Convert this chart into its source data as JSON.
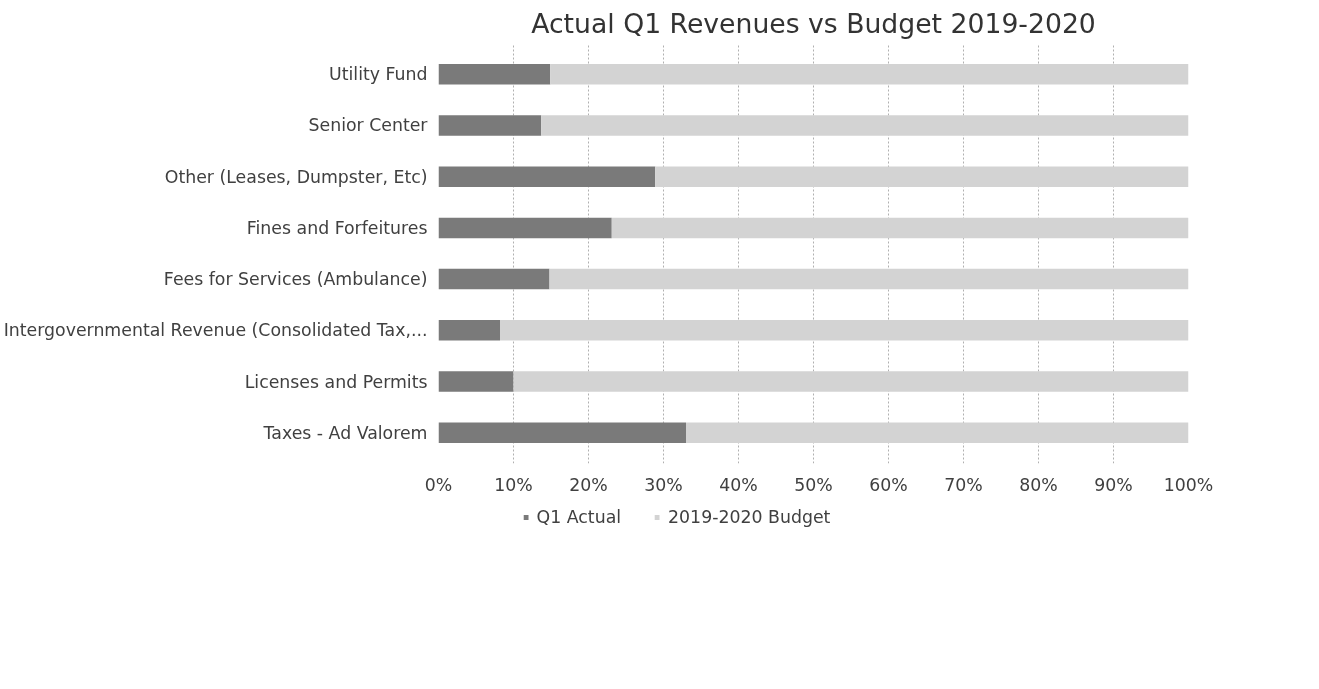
{
  "chart_data": {
    "type": "bar",
    "title": "Actual Q1 Revenues vs Budget 2019-2020",
    "orientation": "horizontal",
    "stacked": true,
    "categories": [
      "Utility Fund",
      "Senior Center",
      "Other (Leases, Dumpster, Etc)",
      "Fines and Forfeitures",
      "Fees for Services (Ambulance)",
      "Intergovernmental Revenue (Consolidated Tax,...",
      "Licenses and Permits",
      "Taxes - Ad Valorem"
    ],
    "series": [
      {
        "name": "Q1 Actual",
        "color": "#7a7a7a",
        "values": [
          14.9,
          13.7,
          28.9,
          23.1,
          14.8,
          8.2,
          10.0,
          33.0
        ]
      },
      {
        "name": "2019-2020 Budget",
        "color": "#d3d3d3",
        "values": [
          85.1,
          86.3,
          71.1,
          76.9,
          85.2,
          91.8,
          90.0,
          67.0
        ]
      }
    ],
    "xlim": [
      0,
      100
    ],
    "xticks": [
      {
        "value": 0,
        "label": "0%"
      },
      {
        "value": 10,
        "label": "10%"
      },
      {
        "value": 20,
        "label": "20%"
      },
      {
        "value": 30,
        "label": "30%"
      },
      {
        "value": 40,
        "label": "40%"
      },
      {
        "value": 50,
        "label": "50%"
      },
      {
        "value": 60,
        "label": "60%"
      },
      {
        "value": 70,
        "label": "70%"
      },
      {
        "value": 80,
        "label": "80%"
      },
      {
        "value": 90,
        "label": "90%"
      },
      {
        "value": 100,
        "label": "100%"
      }
    ],
    "grid": "x",
    "legend": "bottom"
  }
}
